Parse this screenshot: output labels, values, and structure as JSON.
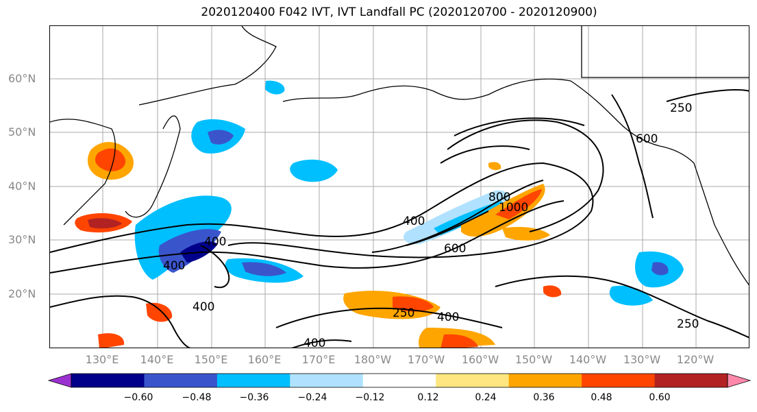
{
  "title": "2020120400 F042 IVT, IVT Landfall PC (2020120700 - 2020120900)",
  "latitude_labels": [
    "60°N",
    "50°N",
    "40°N",
    "30°N",
    "20°N"
  ],
  "longitude_labels": [
    "130°E",
    "140°E",
    "150°E",
    "160°E",
    "170°E",
    "180°W",
    "170°W",
    "160°W",
    "150°W",
    "140°W",
    "130°W",
    "120°W"
  ],
  "contour_labels": [
    "250",
    "250",
    "250",
    "400",
    "400",
    "400",
    "400",
    "400",
    "400",
    "600",
    "600",
    "800",
    "1000"
  ],
  "colorbar": {
    "ticks": [
      "−0.60",
      "−0.48",
      "−0.36",
      "−0.24",
      "−0.12",
      "0.12",
      "0.24",
      "0.36",
      "0.48",
      "0.60"
    ],
    "colors": [
      "#9b30d0",
      "#00008b",
      "#3a55cc",
      "#00bfff",
      "#b0e2ff",
      "#ffffff",
      "#ffe680",
      "#ffa500",
      "#ff4500",
      "#b22222",
      "#ff88aa"
    ]
  }
}
